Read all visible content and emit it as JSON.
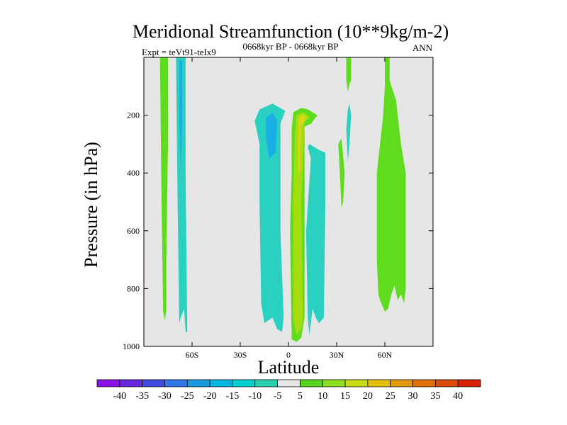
{
  "chart_data": {
    "type": "contour",
    "title": "Meridional Streamfunction (10**9kg/m-2)",
    "subtitle_left": "Expt = teVt91-teIx9",
    "subtitle_center": "0668kyr BP - 0668kyr BP",
    "subtitle_right": "ANN",
    "xlabel": "Latitude",
    "ylabel": "Pressure (in hPa)",
    "xlim": [
      -90,
      90
    ],
    "ylim": [
      1000,
      0
    ],
    "x_ticks": [
      {
        "value": -60,
        "label": "60S"
      },
      {
        "value": -30,
        "label": "30S"
      },
      {
        "value": 0,
        "label": "0"
      },
      {
        "value": 30,
        "label": "30N"
      },
      {
        "value": 60,
        "label": "60N"
      }
    ],
    "y_ticks": [
      {
        "value": 200,
        "label": "200"
      },
      {
        "value": 400,
        "label": "400"
      },
      {
        "value": 600,
        "label": "600"
      },
      {
        "value": 800,
        "label": "800"
      },
      {
        "value": 1000,
        "label": "1000"
      }
    ],
    "background_color": "#e6e6e6",
    "colorbar": {
      "labels": [
        "-40",
        "-35",
        "-30",
        "-25",
        "-20",
        "-15",
        "-10",
        "-5",
        "5",
        "10",
        "15",
        "20",
        "25",
        "30",
        "35",
        "40"
      ],
      "colors": [
        "#8a0ee6",
        "#6a26e0",
        "#3e4ae0",
        "#2f76e6",
        "#189ae0",
        "#00b8e0",
        "#00d2d2",
        "#2ad0b0",
        "#e6e6e6",
        "#5ad61e",
        "#8ee020",
        "#c8dc14",
        "#e2c00c",
        "#e49a08",
        "#e27008",
        "#de4a08",
        "#d82006"
      ]
    },
    "regions": [
      {
        "name": "band-85s-positive",
        "level": 5,
        "points": [
          [
            -80,
            0
          ],
          [
            -75,
            0
          ],
          [
            -75,
            300
          ],
          [
            -76,
            700
          ],
          [
            -76,
            880
          ],
          [
            -77,
            910
          ],
          [
            -78,
            880
          ],
          [
            -79,
            500
          ],
          [
            -80,
            0
          ]
        ]
      },
      {
        "name": "band-70s-negative",
        "level": -10,
        "points": [
          [
            -70,
            0
          ],
          [
            -64,
            0
          ],
          [
            -64,
            400
          ],
          [
            -63,
            950
          ],
          [
            -64,
            950
          ],
          [
            -65,
            870
          ],
          [
            -67,
            900
          ],
          [
            -68,
            920
          ],
          [
            -69,
            500
          ],
          [
            -70,
            0
          ]
        ]
      },
      {
        "name": "band-70s-core",
        "level": -15,
        "points": [
          [
            -68,
            10
          ],
          [
            -66,
            10
          ],
          [
            -66,
            200
          ],
          [
            -67,
            400
          ],
          [
            -68,
            200
          ],
          [
            -68,
            10
          ]
        ]
      },
      {
        "name": "sh-hadley-negative",
        "level": -10,
        "points": [
          [
            -21,
            220
          ],
          [
            -18,
            180
          ],
          [
            -10,
            160
          ],
          [
            -2,
            185
          ],
          [
            -5,
            230
          ],
          [
            -5,
            600
          ],
          [
            -3,
            900
          ],
          [
            -4,
            950
          ],
          [
            -7,
            940
          ],
          [
            -10,
            900
          ],
          [
            -15,
            920
          ],
          [
            -17,
            850
          ],
          [
            -18,
            500
          ],
          [
            -18,
            300
          ],
          [
            -21,
            220
          ]
        ]
      },
      {
        "name": "sh-hadley-core",
        "level": -15,
        "points": [
          [
            -14,
            210
          ],
          [
            -10,
            190
          ],
          [
            -7,
            220
          ],
          [
            -8,
            330
          ],
          [
            -12,
            350
          ],
          [
            -14,
            280
          ],
          [
            -14,
            210
          ]
        ]
      },
      {
        "name": "eq-positive",
        "level": 5,
        "points": [
          [
            3,
            190
          ],
          [
            8,
            175
          ],
          [
            12,
            180
          ],
          [
            18,
            200
          ],
          [
            14,
            230
          ],
          [
            10,
            240
          ],
          [
            10,
            600
          ],
          [
            10,
            900
          ],
          [
            8,
            970
          ],
          [
            5,
            985
          ],
          [
            2,
            975
          ],
          [
            1,
            600
          ],
          [
            2,
            400
          ],
          [
            2,
            250
          ],
          [
            3,
            190
          ]
        ]
      },
      {
        "name": "eq-core-10",
        "level": 10,
        "points": [
          [
            4,
            260
          ],
          [
            5,
            200
          ],
          [
            9,
            190
          ],
          [
            13,
            205
          ],
          [
            10,
            225
          ],
          [
            8,
            500
          ],
          [
            9,
            900
          ],
          [
            8,
            940
          ],
          [
            5,
            960
          ],
          [
            3,
            900
          ],
          [
            3,
            500
          ],
          [
            4,
            260
          ]
        ]
      },
      {
        "name": "eq-core-15",
        "level": 15,
        "points": [
          [
            6,
            210
          ],
          [
            9,
            198
          ],
          [
            11,
            210
          ],
          [
            8,
            240
          ],
          [
            7,
            400
          ],
          [
            6,
            400
          ],
          [
            6,
            210
          ]
        ]
      },
      {
        "name": "nh-negative",
        "level": -10,
        "points": [
          [
            14,
            350
          ],
          [
            12,
            310
          ],
          [
            13,
            300
          ],
          [
            19,
            320
          ],
          [
            23,
            330
          ],
          [
            23,
            500
          ],
          [
            22,
            900
          ],
          [
            19,
            920
          ],
          [
            17,
            900
          ],
          [
            15,
            870
          ],
          [
            13,
            960
          ],
          [
            12,
            900
          ],
          [
            11,
            600
          ],
          [
            14,
            350
          ]
        ]
      },
      {
        "name": "nh-30-positive",
        "level": 5,
        "points": [
          [
            31,
            300
          ],
          [
            33,
            280
          ],
          [
            35,
            400
          ],
          [
            34,
            500
          ],
          [
            33,
            520
          ],
          [
            32,
            400
          ],
          [
            31,
            300
          ]
        ]
      },
      {
        "name": "nh-38-positive",
        "level": 5,
        "points": [
          [
            36,
            0
          ],
          [
            39,
            0
          ],
          [
            39,
            80
          ],
          [
            38,
            90
          ],
          [
            37,
            120
          ],
          [
            36,
            80
          ],
          [
            36,
            0
          ]
        ]
      },
      {
        "name": "nh-38-negative",
        "level": -10,
        "points": [
          [
            37,
            180
          ],
          [
            38,
            160
          ],
          [
            39,
            200
          ],
          [
            38,
            300
          ],
          [
            37,
            360
          ],
          [
            36,
            250
          ],
          [
            37,
            180
          ]
        ]
      },
      {
        "name": "nh-60-positive",
        "level": 5,
        "points": [
          [
            60,
            0
          ],
          [
            63,
            0
          ],
          [
            63,
            80
          ],
          [
            67,
            150
          ],
          [
            69,
            250
          ],
          [
            70,
            300
          ],
          [
            73,
            400
          ],
          [
            73,
            600
          ],
          [
            73,
            800
          ],
          [
            72,
            850
          ],
          [
            70,
            820
          ],
          [
            68,
            840
          ],
          [
            66,
            790
          ],
          [
            64,
            820
          ],
          [
            62,
            870
          ],
          [
            60,
            880
          ],
          [
            57,
            840
          ],
          [
            56,
            820
          ],
          [
            55,
            700
          ],
          [
            55,
            400
          ],
          [
            57,
            300
          ],
          [
            59,
            200
          ],
          [
            60,
            100
          ],
          [
            60,
            0
          ]
        ]
      }
    ]
  }
}
